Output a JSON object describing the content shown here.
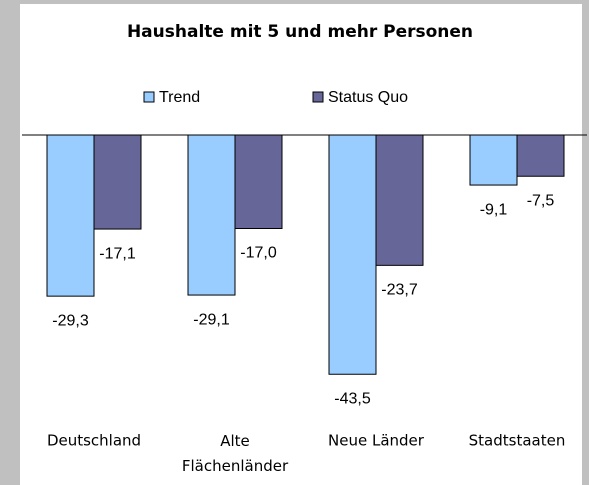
{
  "chart_data": {
    "type": "bar",
    "title": "Haushalte mit 5 und mehr Personen",
    "categories": [
      "Deutschland",
      "Alte Flächenländer",
      "Neue Länder",
      "Stadtstaaten"
    ],
    "series": [
      {
        "name": "Trend",
        "color": "#99ccff",
        "values": [
          -29.3,
          -29.1,
          -43.5,
          -9.1
        ],
        "value_labels": [
          "-29,3",
          "-29,1",
          "-43,5",
          "-9,1"
        ]
      },
      {
        "name": "Status Quo",
        "color": "#666699",
        "values": [
          -17.1,
          -17.0,
          -23.7,
          -7.5
        ],
        "value_labels": [
          "-17,1",
          "-17,0",
          "-23,7",
          "-7,5"
        ]
      }
    ],
    "ylim": [
      -45,
      0
    ]
  }
}
